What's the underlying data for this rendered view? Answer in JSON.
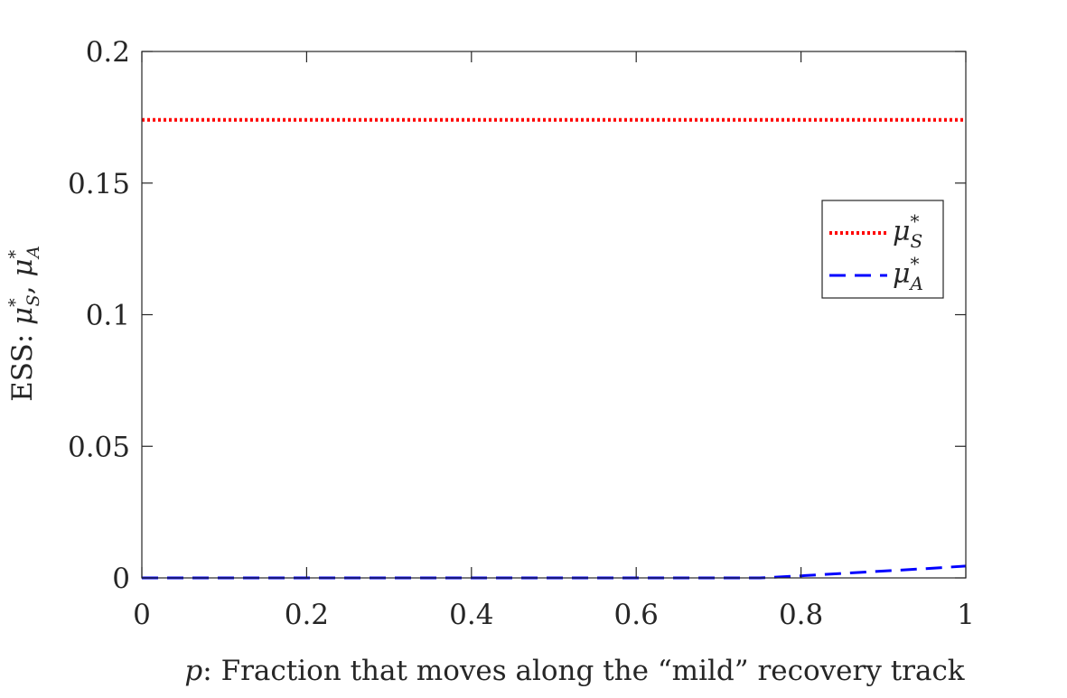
{
  "chart_data": {
    "type": "line",
    "title": "",
    "xlabel": "p: Fraction that moves along the “mild” recovery track",
    "xlabel_var": "p",
    "xlabel_rest": ": Fraction that moves along the “mild” recovery track",
    "ylabel": "ESS: μ*S, μ*A",
    "ylabel_prefix": "ESS: ",
    "xlim": [
      0,
      1
    ],
    "ylim": [
      0,
      0.2
    ],
    "xticks": [
      0,
      0.2,
      0.4,
      0.6,
      0.8,
      1
    ],
    "xtick_labels": [
      "0",
      "0.2",
      "0.4",
      "0.6",
      "0.8",
      "1"
    ],
    "yticks": [
      0,
      0.05,
      0.1,
      0.15,
      0.2
    ],
    "ytick_labels": [
      "0",
      "0.05",
      "0.1",
      "0.15",
      "0.2"
    ],
    "grid": false,
    "legend_position": "right",
    "series": [
      {
        "name": "μ*S",
        "symbol": "μ",
        "superscript": "*",
        "subscript": "S",
        "color": "#ff0000",
        "style": "dotted",
        "x": [
          0,
          0.1,
          0.2,
          0.3,
          0.4,
          0.5,
          0.6,
          0.7,
          0.8,
          0.9,
          1.0
        ],
        "y": [
          0.174,
          0.174,
          0.174,
          0.174,
          0.174,
          0.174,
          0.174,
          0.174,
          0.174,
          0.174,
          0.174
        ]
      },
      {
        "name": "μ*A",
        "symbol": "μ",
        "superscript": "*",
        "subscript": "A",
        "color": "#0000ff",
        "style": "dashed",
        "x": [
          0,
          0.1,
          0.2,
          0.3,
          0.4,
          0.5,
          0.6,
          0.7,
          0.75,
          0.8,
          0.85,
          0.9,
          0.95,
          1.0
        ],
        "y": [
          0,
          0,
          0,
          0,
          0,
          0,
          0,
          0,
          0,
          0.0008,
          0.0017,
          0.0026,
          0.0035,
          0.0045
        ]
      }
    ]
  }
}
